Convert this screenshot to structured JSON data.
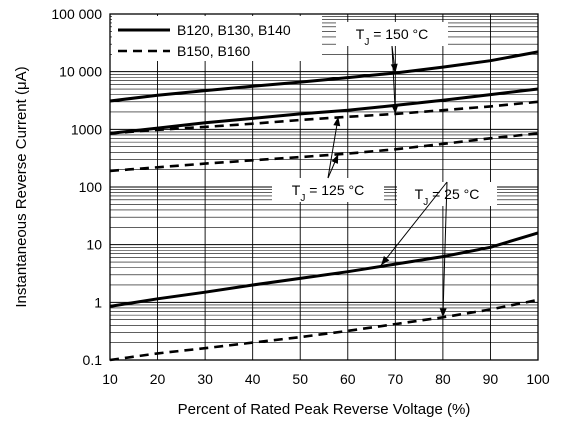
{
  "chart_data": {
    "type": "line",
    "xlabel": "Percent of Rated Peak Reverse Voltage (%)",
    "ylabel": "Instantaneous Reverse Current (μA)",
    "y_scale": "log",
    "xlim": [
      10,
      100
    ],
    "ylim": [
      0.1,
      100000
    ],
    "x_ticks": [
      "10",
      "20",
      "30",
      "40",
      "50",
      "60",
      "70",
      "80",
      "90",
      "100"
    ],
    "y_ticks": [
      "0.1",
      "1",
      "10",
      "100",
      "1000",
      "10 000",
      "100 000"
    ],
    "grid": true,
    "legend": [
      {
        "label": "B120, B130, B140",
        "style": "solid"
      },
      {
        "label": "B150, B160",
        "style": "dashed"
      }
    ],
    "series": [
      {
        "legend_index": 0,
        "condition": "150",
        "style": "solid",
        "x": [
          10,
          20,
          30,
          40,
          50,
          60,
          70,
          80,
          90,
          100
        ],
        "y": [
          3100,
          3900,
          4700,
          5600,
          6600,
          7900,
          9500,
          12000,
          15500,
          22000
        ]
      },
      {
        "legend_index": 0,
        "condition": "125",
        "style": "solid",
        "x": [
          10,
          20,
          30,
          40,
          50,
          60,
          70,
          80,
          90,
          100
        ],
        "y": [
          850,
          1050,
          1300,
          1550,
          1850,
          2150,
          2600,
          3200,
          4000,
          5000
        ]
      },
      {
        "legend_index": 0,
        "condition": "25",
        "style": "solid",
        "x": [
          10,
          20,
          30,
          40,
          50,
          60,
          70,
          80,
          90,
          100
        ],
        "y": [
          0.85,
          1.15,
          1.5,
          2.0,
          2.6,
          3.4,
          4.6,
          6.2,
          9.0,
          16
        ]
      },
      {
        "legend_index": 1,
        "condition": "150",
        "style": "dashed",
        "x": [
          10,
          20,
          30,
          40,
          50,
          60,
          70,
          80,
          90,
          100
        ],
        "y": [
          850,
          980,
          1100,
          1250,
          1450,
          1650,
          1850,
          2150,
          2500,
          3000
        ]
      },
      {
        "legend_index": 1,
        "condition": "125",
        "style": "dashed",
        "x": [
          10,
          20,
          30,
          40,
          50,
          60,
          70,
          80,
          90,
          100
        ],
        "y": [
          190,
          220,
          255,
          290,
          330,
          380,
          450,
          560,
          700,
          850
        ]
      },
      {
        "legend_index": 1,
        "condition": "25",
        "style": "dashed",
        "x": [
          10,
          20,
          30,
          40,
          50,
          60,
          70,
          80,
          90,
          100
        ],
        "y": [
          0.1,
          0.13,
          0.16,
          0.2,
          0.25,
          0.32,
          0.42,
          0.55,
          0.75,
          1.1
        ]
      }
    ],
    "annotations": [
      {
        "label": "T",
        "sub": "J",
        "rest": " = 150 °C",
        "points_to": [
          [
            70,
            9500
          ],
          [
            70,
            1850
          ]
        ]
      },
      {
        "label": "T",
        "sub": "J",
        "rest": " = 125 °C",
        "points_to": [
          [
            58,
            1650
          ],
          [
            58,
            370
          ]
        ]
      },
      {
        "label": "T",
        "sub": "J",
        "rest": " = 25 °C",
        "points_to": [
          [
            67,
            4.4
          ],
          [
            80,
            0.55
          ]
        ]
      }
    ]
  }
}
